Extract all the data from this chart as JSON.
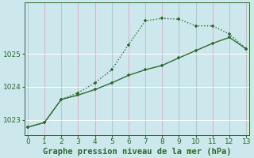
{
  "title": "Graphe pression niveau de la mer (hPa)",
  "background_color": "#cce8ed",
  "grid_color": "#b8d8de",
  "line_color": "#2d6a2d",
  "series1_x": [
    0,
    1,
    2,
    3,
    4,
    5,
    6,
    7,
    8,
    9,
    10,
    11,
    12,
    13
  ],
  "series1_y": [
    1022.78,
    1022.92,
    1023.62,
    1023.82,
    1024.12,
    1024.52,
    1025.28,
    1026.0,
    1026.08,
    1026.05,
    1025.85,
    1025.85,
    1025.6,
    1025.15
  ],
  "series2_x": [
    0,
    1,
    2,
    3,
    4,
    5,
    6,
    7,
    8,
    9,
    10,
    11,
    12,
    13
  ],
  "series2_y": [
    1022.78,
    1022.92,
    1023.62,
    1023.75,
    1023.92,
    1024.12,
    1024.35,
    1024.52,
    1024.65,
    1024.88,
    1025.1,
    1025.32,
    1025.5,
    1025.15
  ],
  "xlim": [
    -0.2,
    13.2
  ],
  "ylim": [
    1022.55,
    1026.55
  ],
  "yticks": [
    1023,
    1024,
    1025
  ],
  "xticks": [
    0,
    1,
    2,
    3,
    4,
    5,
    6,
    7,
    8,
    9,
    10,
    11,
    12,
    13
  ],
  "title_fontsize": 7.5,
  "tick_fontsize": 6.5,
  "line_width": 1.0,
  "marker_size": 3.5
}
